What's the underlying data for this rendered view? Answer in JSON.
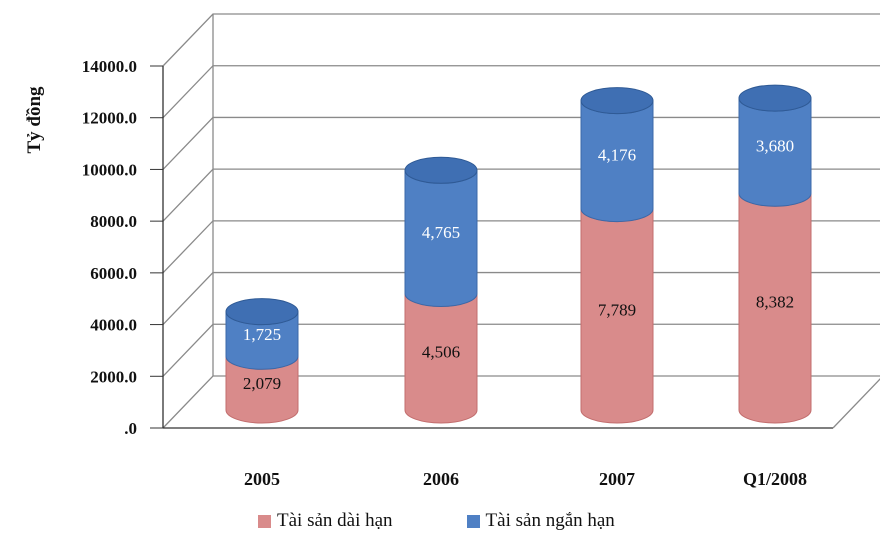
{
  "chart_data": {
    "type": "bar",
    "stacked": true,
    "style": "3d-cylinder",
    "categories": [
      "2005",
      "2006",
      "2007",
      "Q1/2008"
    ],
    "series": [
      {
        "name": "Tài sản dài hạn",
        "color": "#d98b8b",
        "values": [
          2079,
          4506,
          7789,
          8382
        ],
        "labels": [
          "2,079",
          "4,506",
          "7,789",
          "8,382"
        ]
      },
      {
        "name": "Tài sản ngắn hạn",
        "color": "#4f80c4",
        "values": [
          1725,
          4765,
          4176,
          3680
        ],
        "labels": [
          "1,725",
          "4,765",
          "4,176",
          "3,680"
        ]
      }
    ],
    "ylabel": "Tỷ đồng",
    "ylim": [
      0,
      14000
    ],
    "yticks": [
      ".0",
      "2000.0",
      "4000.0",
      "6000.0",
      "8000.0",
      "10000.0",
      "12000.0",
      "14000.0"
    ],
    "grid": true,
    "legend_position": "bottom"
  }
}
